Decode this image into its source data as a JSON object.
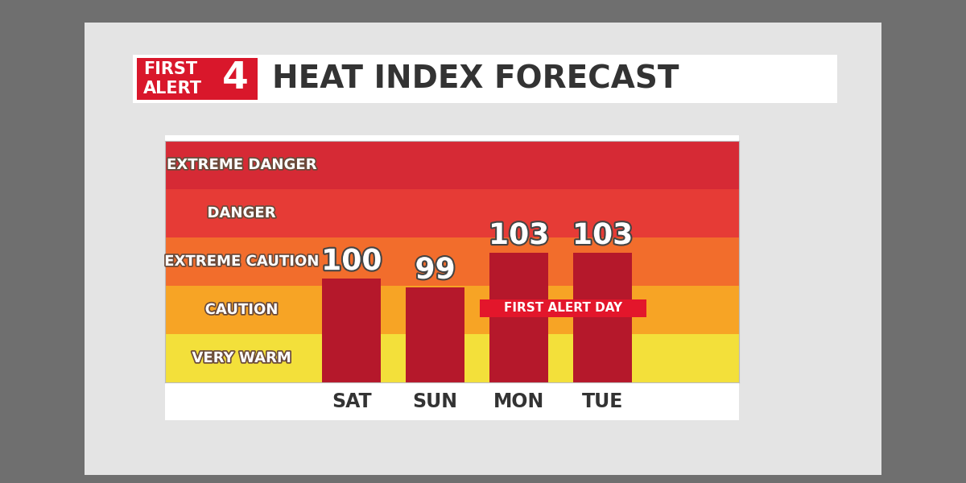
{
  "chart_data": {
    "type": "bar",
    "title": "HEAT INDEX FORECAST",
    "logo_text": [
      "FIRST",
      "ALERT"
    ],
    "logo_number": "4",
    "categories": [
      "SAT",
      "SUN",
      "MON",
      "TUE"
    ],
    "values": [
      100,
      99,
      103,
      103
    ],
    "color": "#b5182b",
    "data_labels": true,
    "tick_labels": "x",
    "ylim": [
      88,
      116
    ],
    "bands": [
      {
        "label": "VERY WARM",
        "color": "#f3e03a",
        "from": 88,
        "to": 93.6
      },
      {
        "label": "CAUTION",
        "color": "#f7a425",
        "from": 93.6,
        "to": 99.2
      },
      {
        "label": "EXTREME CAUTION",
        "color": "#f26d2c",
        "from": 99.2,
        "to": 104.8
      },
      {
        "label": "DANGER",
        "color": "#e63b36",
        "from": 104.8,
        "to": 110.4
      },
      {
        "label": "EXTREME DANGER",
        "color": "#d62a35",
        "from": 110.4,
        "to": 116
      }
    ],
    "annotations": [
      {
        "text": "FIRST ALERT DAY",
        "categories": [
          "MON",
          "TUE"
        ],
        "color": "#e3162b"
      }
    ]
  }
}
